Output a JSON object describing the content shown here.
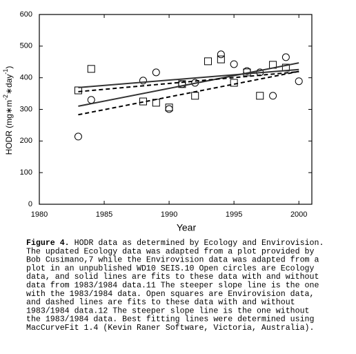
{
  "chart_data": {
    "type": "scatter",
    "xlabel": "Year",
    "ylabel": [
      {
        "text": "HODR (mg∗m"
      },
      {
        "text": "-2",
        "sup": true
      },
      {
        "text": "∗day"
      },
      {
        "text": "-1",
        "sup": true
      },
      {
        "text": ")"
      }
    ],
    "xlim": [
      1980,
      2001
    ],
    "xticks": [
      1980,
      1985,
      1990,
      1995,
      2000
    ],
    "ylim": [
      0,
      600
    ],
    "yticks": [
      0,
      100,
      200,
      300,
      400,
      500,
      600
    ],
    "series": [
      {
        "marker": "circle",
        "color": "#000000",
        "x": [
          1983,
          1984,
          1988,
          1989,
          1990,
          1991,
          1992,
          1994,
          1995,
          1996,
          1997,
          1998,
          1999,
          2000
        ],
        "values": [
          214,
          330,
          391,
          417,
          301,
          380,
          384,
          474,
          443,
          421,
          417,
          343,
          465,
          389
        ]
      },
      {
        "marker": "square",
        "color": "#000000",
        "x": [
          1983,
          1984,
          1988,
          1989,
          1990,
          1991,
          1992,
          1993,
          1994,
          1995,
          1996,
          1997,
          1998,
          1999
        ],
        "values": [
          360,
          428,
          325,
          321,
          306,
          380,
          343,
          452,
          458,
          384,
          417,
          343,
          441,
          432
        ]
      },
      {
        "line": "solid",
        "color": "#333333",
        "x": [
          1983,
          2000
        ],
        "values": [
          310,
          447
        ]
      },
      {
        "line": "solid",
        "color": "#333333",
        "x": [
          1983,
          2000
        ],
        "values": [
          369,
          426
        ]
      },
      {
        "line": "dashed",
        "color": "#000000",
        "x": [
          1983,
          2000
        ],
        "values": [
          283,
          420
        ]
      },
      {
        "line": "dashed",
        "color": "#000000",
        "x": [
          1983,
          2000
        ],
        "values": [
          356,
          419
        ]
      }
    ]
  },
  "caption": {
    "label": "Figure 4.",
    "lines": [
      "HODR data as determined by Ecology and Envirovision.",
      "The updated Ecology data was adapted from a plot provided by",
      "Bob Cusimano,7 while the Envirovision data was adapted from a",
      "plot in an unpublished WD10 SEIS.10 Open circles are Ecology",
      "data, and solid lines are fits to these data with and without",
      "data from 1983/1984 data.11 The steeper slope line is the one",
      "with the 1983/1984 data. Open squares are Envirovision data,",
      "and dashed lines are fits to these data with and without",
      "1983/1984 data.12 The steeper slope line is the one without",
      "the 1983/1984 data. Best fitting lines were determined using",
      "MacCurveFit 1.4 (Kevin Raner Software, Victoria, Australia)."
    ]
  }
}
